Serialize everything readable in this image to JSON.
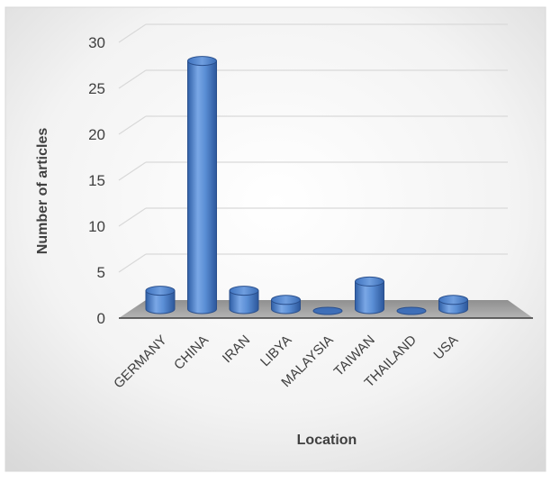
{
  "chart_data": {
    "type": "bar",
    "style": "3d-cylinder",
    "categories": [
      "GERMANY",
      "CHINA",
      "IRAN",
      "LIBYA",
      "MALAYSIA",
      "TAIWAN",
      "THAILAND",
      "USA"
    ],
    "values": [
      2,
      27,
      2,
      1,
      0,
      3,
      0,
      1
    ],
    "xlabel": "Location",
    "ylabel": "Number of articles",
    "ylim": [
      0,
      30
    ],
    "yticks": [
      "0",
      "5",
      "10",
      "15",
      "20",
      "25",
      "30"
    ],
    "grid": true,
    "legend": "none",
    "bar_color": "#4a7fc8",
    "floor_color": "#9a9a9a"
  }
}
